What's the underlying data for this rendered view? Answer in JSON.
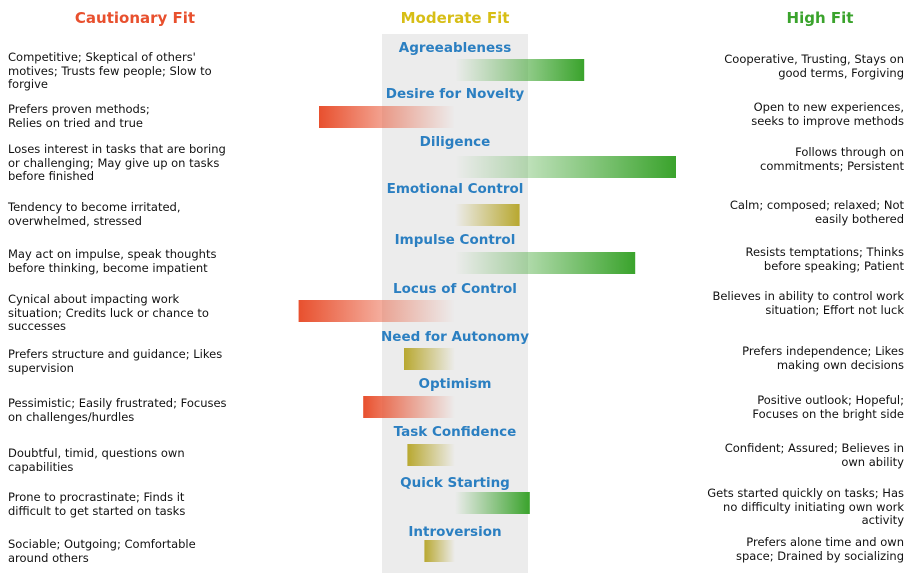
{
  "headers": {
    "cautionary": "Cautionary Fit",
    "moderate": "Moderate Fit",
    "high": "High Fit"
  },
  "colors": {
    "cautionary": "#e8502e",
    "moderate": "#d7be16",
    "high": "#3aa32c",
    "trait_label": "#2b7fc1",
    "moderate_band": "#ececec",
    "moderate_bar": "#b8a830"
  },
  "chart_data": {
    "type": "bar",
    "orientation": "horizontal-diverging",
    "bar_type": "gradient-from-center",
    "x_range": [
      -1,
      1
    ],
    "center_zone": [
      -0.12,
      0.12
    ],
    "grid": false,
    "legend": "none",
    "categories": [
      "Agreeableness",
      "Desire for Novelty",
      "Diligence",
      "Emotional Control",
      "Impulse Control",
      "Locus of Control",
      "Need for Autonomy",
      "Optimism",
      "Task Confidence",
      "Quick Starting",
      "Introversion"
    ],
    "values": [
      0.38,
      -0.4,
      0.65,
      0.19,
      0.53,
      -0.46,
      -0.15,
      -0.27,
      -0.14,
      0.22,
      -0.09
    ],
    "levels": [
      "high",
      "cautionary",
      "high",
      "moderate",
      "high",
      "cautionary",
      "moderate",
      "cautionary",
      "moderate",
      "high",
      "moderate"
    ]
  },
  "traits": [
    {
      "name": "Agreeableness",
      "cautionary": "Competitive; Skeptical of others'\nmotives; Trusts few people; Slow to\nforgive",
      "high": "Cooperative, Trusting,  Stays on\ngood terms, Forgiving"
    },
    {
      "name": "Desire for Novelty",
      "cautionary": "Prefers proven methods;\nRelies on tried and true",
      "high": "Open to new experiences,\nseeks to improve methods"
    },
    {
      "name": "Diligence",
      "cautionary": "Loses interest in tasks that are boring\nor challenging; May give up on tasks\nbefore finished",
      "high": "Follows through on\ncommitments; Persistent"
    },
    {
      "name": "Emotional Control",
      "cautionary": "Tendency to become irritated,\noverwhelmed, stressed",
      "high": "Calm; composed;  relaxed; Not\neasily bothered"
    },
    {
      "name": "Impulse Control",
      "cautionary": "May act on impulse, speak thoughts\nbefore thinking, become impatient",
      "high": "Resists temptations; Thinks\nbefore speaking; Patient"
    },
    {
      "name": "Locus of Control",
      "cautionary": "Cynical about impacting work\nsituation; Credits luck or chance to\nsuccesses",
      "high": "Believes in ability to control work\nsituation; Effort not luck"
    },
    {
      "name": "Need for Autonomy",
      "cautionary": "Prefers structure and guidance; Likes\nsupervision",
      "high": "Prefers independence; Likes\nmaking own decisions"
    },
    {
      "name": "Optimism",
      "cautionary": "Pessimistic; Easily frustrated; Focuses\non challenges/hurdles",
      "high": "Positive outlook; Hopeful;\nFocuses on the bright side"
    },
    {
      "name": "Task Confidence",
      "cautionary": "Doubtful, timid, questions own\ncapabilities",
      "high": "Confident; Assured; Believes in\nown ability"
    },
    {
      "name": "Quick Starting",
      "cautionary": "Prone to procrastinate; Finds it\ndifficult to get started on tasks",
      "high": "Gets started quickly on tasks; Has\nno  difficulty initiating own work\nactivity"
    },
    {
      "name": "Introversion",
      "cautionary": "Sociable; Outgoing; Comfortable\naround others",
      "high": "Prefers alone time and own\nspace; Drained by socializing"
    }
  ]
}
